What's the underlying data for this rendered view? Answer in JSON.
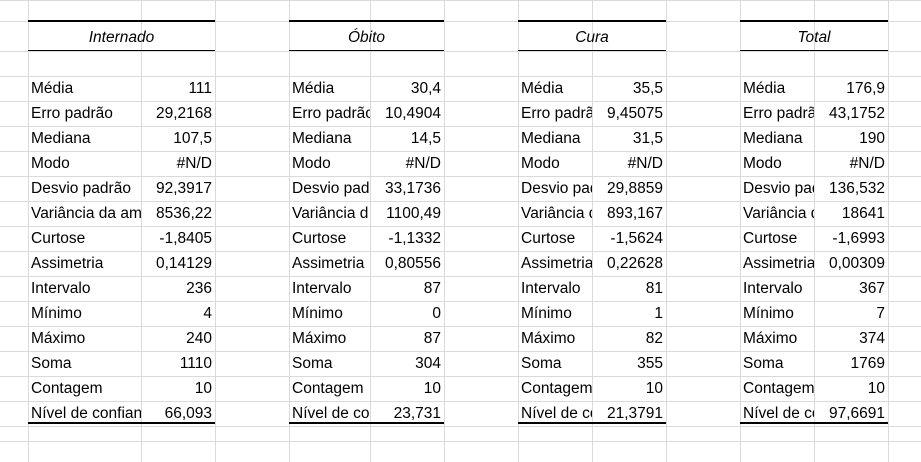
{
  "tables": [
    {
      "header": "Internado",
      "rows": [
        {
          "label": "Média",
          "value": "111"
        },
        {
          "label": "Erro padrão",
          "value": "29,2168"
        },
        {
          "label": "Mediana",
          "value": "107,5"
        },
        {
          "label": "Modo",
          "value": "#N/D"
        },
        {
          "label": "Desvio padrão",
          "value": "92,3917"
        },
        {
          "label": "Variância da am",
          "value": "8536,22"
        },
        {
          "label": "Curtose",
          "value": "-1,8405"
        },
        {
          "label": "Assimetria",
          "value": "0,14129"
        },
        {
          "label": "Intervalo",
          "value": "236"
        },
        {
          "label": "Mínimo",
          "value": "4"
        },
        {
          "label": "Máximo",
          "value": "240"
        },
        {
          "label": "Soma",
          "value": "1110"
        },
        {
          "label": "Contagem",
          "value": "10"
        },
        {
          "label": "Nível de confian",
          "value": "66,093"
        }
      ]
    },
    {
      "header": "Óbito",
      "rows": [
        {
          "label": "Média",
          "value": "30,4"
        },
        {
          "label": "Erro padrão",
          "value": "10,4904"
        },
        {
          "label": "Mediana",
          "value": "14,5"
        },
        {
          "label": "Modo",
          "value": "#N/D"
        },
        {
          "label": "Desvio pad",
          "value": "33,1736"
        },
        {
          "label": "Variância d",
          "value": "1100,49"
        },
        {
          "label": "Curtose",
          "value": "-1,1332"
        },
        {
          "label": "Assimetria",
          "value": "0,80556"
        },
        {
          "label": "Intervalo",
          "value": "87"
        },
        {
          "label": "Mínimo",
          "value": "0"
        },
        {
          "label": "Máximo",
          "value": "87"
        },
        {
          "label": "Soma",
          "value": "304"
        },
        {
          "label": "Contagem",
          "value": "10"
        },
        {
          "label": "Nível de co",
          "value": "23,731"
        }
      ]
    },
    {
      "header": "Cura",
      "rows": [
        {
          "label": "Média",
          "value": "35,5"
        },
        {
          "label": "Erro padrã",
          "value": "9,45075"
        },
        {
          "label": "Mediana",
          "value": "31,5"
        },
        {
          "label": "Modo",
          "value": "#N/D"
        },
        {
          "label": "Desvio pad",
          "value": "29,8859"
        },
        {
          "label": "Variância d",
          "value": "893,167"
        },
        {
          "label": "Curtose",
          "value": "-1,5624"
        },
        {
          "label": "Assimetria",
          "value": "0,22628"
        },
        {
          "label": "Intervalo",
          "value": "81"
        },
        {
          "label": "Mínimo",
          "value": "1"
        },
        {
          "label": "Máximo",
          "value": "82"
        },
        {
          "label": "Soma",
          "value": "355"
        },
        {
          "label": "Contagem",
          "value": "10"
        },
        {
          "label": "Nível de co",
          "value": "21,3791"
        }
      ]
    },
    {
      "header": "Total",
      "rows": [
        {
          "label": "Média",
          "value": "176,9"
        },
        {
          "label": "Erro padrã",
          "value": "43,1752"
        },
        {
          "label": "Mediana",
          "value": "190"
        },
        {
          "label": "Modo",
          "value": "#N/D"
        },
        {
          "label": "Desvio pad",
          "value": "136,532"
        },
        {
          "label": "Variância d",
          "value": "18641"
        },
        {
          "label": "Curtose",
          "value": "-1,6993"
        },
        {
          "label": "Assimetria",
          "value": "0,00309"
        },
        {
          "label": "Intervalo",
          "value": "367"
        },
        {
          "label": "Mínimo",
          "value": "7"
        },
        {
          "label": "Máximo",
          "value": "374"
        },
        {
          "label": "Soma",
          "value": "1769"
        },
        {
          "label": "Contagem",
          "value": "10"
        },
        {
          "label": "Nível de co",
          "value": "97,6691"
        }
      ]
    }
  ]
}
